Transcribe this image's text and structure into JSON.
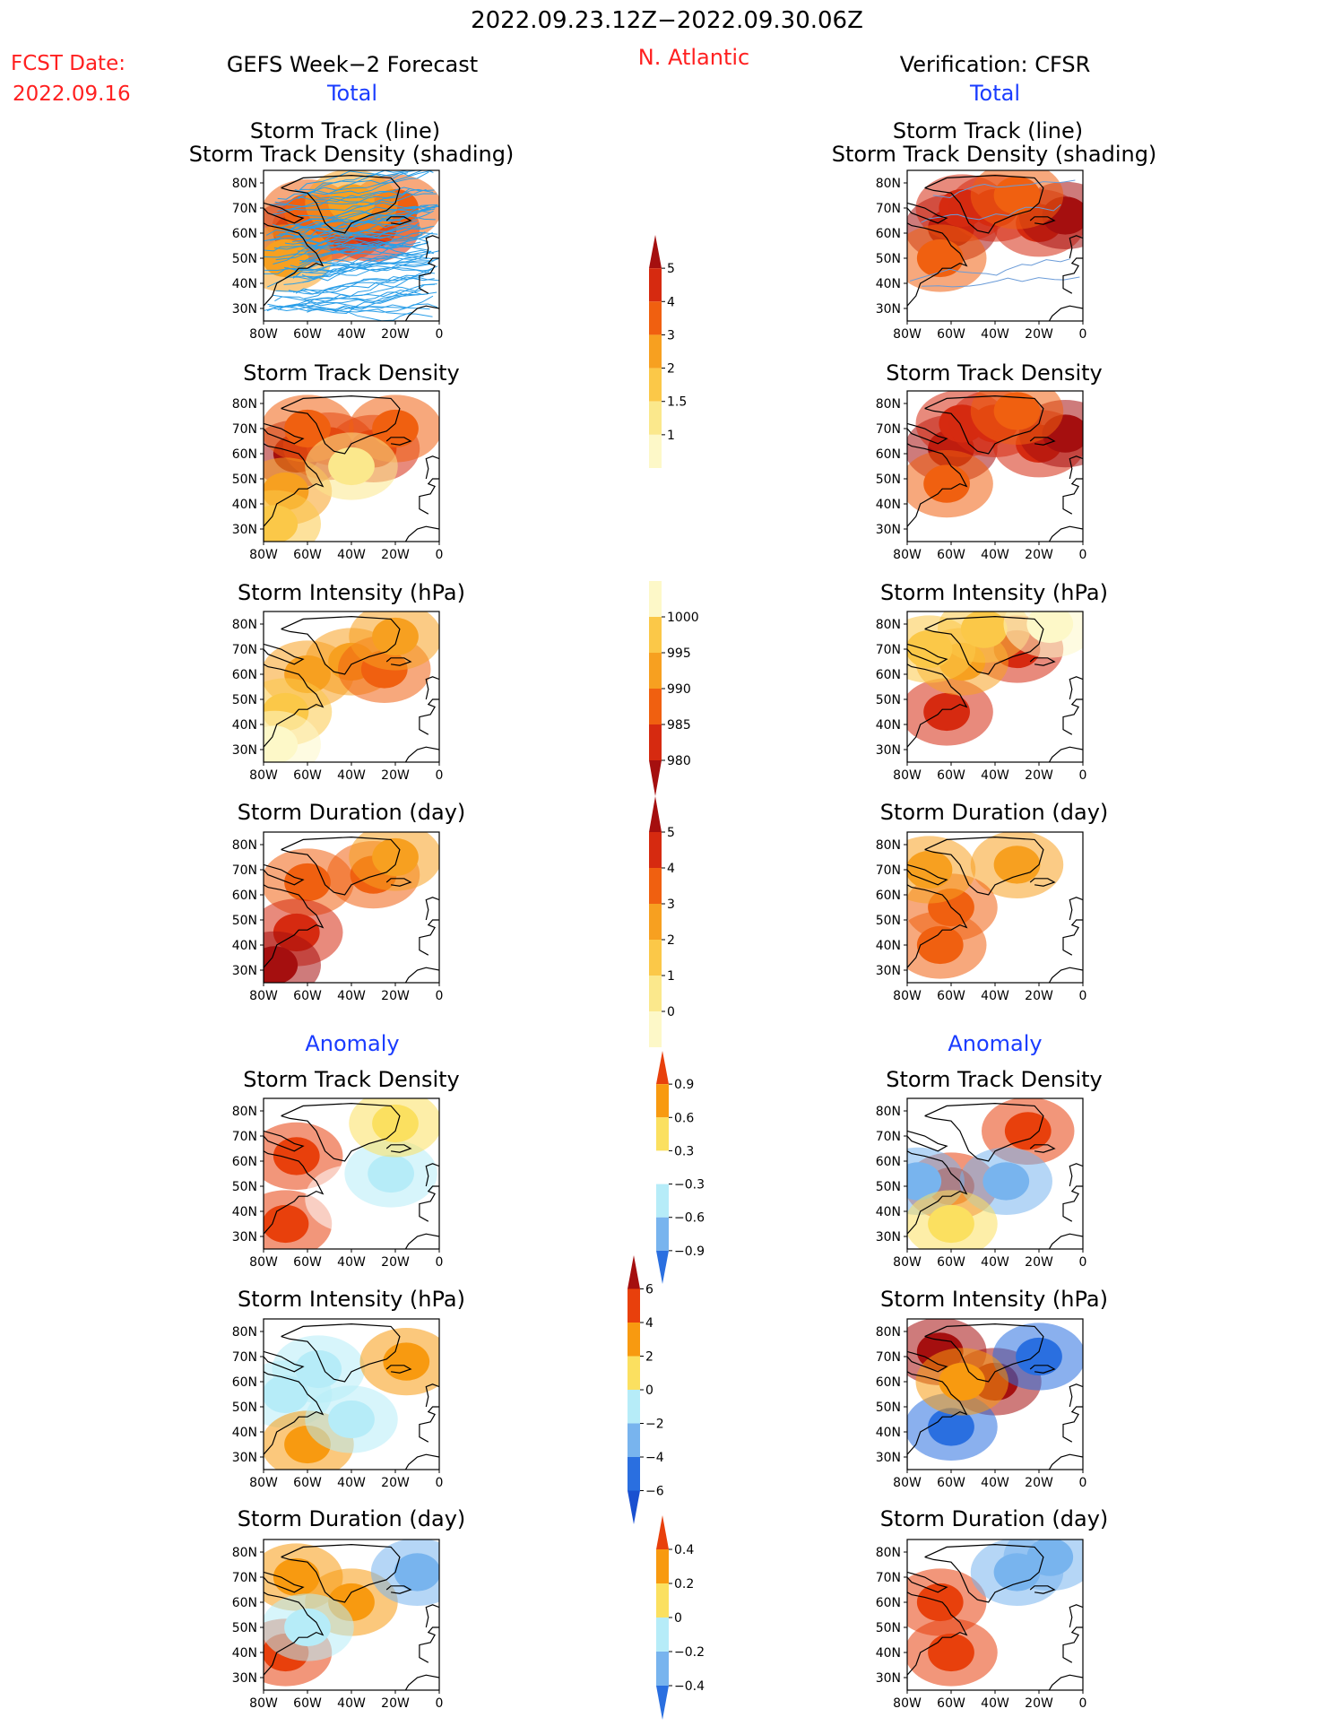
{
  "header": {
    "date_range": "2022.09.23.12Z−2022.09.30.06Z",
    "fcst_label": "FCST Date:",
    "fcst_date": "2022.09.16",
    "left_title": "GEFS Week−2 Forecast",
    "region": "N. Atlantic",
    "right_title": "Verification: CFSR",
    "total_label": "Total",
    "anomaly_label": "Anomaly"
  },
  "panel_titles": {
    "track_line": "Storm Track (line)",
    "track_shading": "Storm Track Density (shading)",
    "density": "Storm Track Density",
    "intensity": "Storm Intensity (hPa)",
    "duration": "Storm Duration (day)"
  },
  "axes": {
    "lat_ticks": [
      "80N",
      "70N",
      "60N",
      "50N",
      "40N",
      "30N"
    ],
    "lon_ticks": [
      "80W",
      "60W",
      "40W",
      "20W",
      "0"
    ]
  },
  "chart_data": [
    {
      "type": "heatmap",
      "panel": "forecast-track",
      "title": "Storm Track (line) / Storm Track Density (shading)",
      "xlim": [
        "80W",
        "0"
      ],
      "ylim": [
        "25N",
        "85N"
      ],
      "cells": [
        [
          -65,
          60,
          5
        ],
        [
          -55,
          62,
          4
        ],
        [
          -45,
          62,
          3
        ],
        [
          -30,
          62,
          4
        ],
        [
          -60,
          68,
          3
        ],
        [
          -20,
          70,
          3
        ],
        [
          -70,
          50,
          2
        ],
        [
          -40,
          72,
          2
        ]
      ]
    },
    {
      "type": "heatmap",
      "panel": "verification-track",
      "title": "Storm Track (line) / Storm Track Density (shading)",
      "xlim": [
        "80W",
        "0"
      ],
      "ylim": [
        "25N",
        "85N"
      ],
      "cells": [
        [
          -60,
          62,
          5
        ],
        [
          -55,
          70,
          4
        ],
        [
          -40,
          70,
          4
        ],
        [
          -20,
          64,
          4
        ],
        [
          -8,
          67,
          5
        ],
        [
          -65,
          50,
          3
        ],
        [
          -30,
          75,
          3
        ]
      ]
    },
    {
      "type": "heatmap",
      "panel": "forecast-density",
      "title": "Storm Track Density",
      "xlim": [
        "80W",
        "0"
      ],
      "ylim": [
        "25N",
        "85N"
      ],
      "cells": [
        [
          -65,
          60,
          5
        ],
        [
          -50,
          63,
          4
        ],
        [
          -30,
          62,
          4
        ],
        [
          -60,
          70,
          3
        ],
        [
          -20,
          70,
          3
        ],
        [
          -70,
          45,
          2
        ],
        [
          -75,
          32,
          1.5
        ],
        [
          -40,
          55,
          1
        ]
      ]
    },
    {
      "type": "heatmap",
      "panel": "verification-density",
      "title": "Storm Track Density",
      "xlim": [
        "80W",
        "0"
      ],
      "ylim": [
        "25N",
        "85N"
      ],
      "cells": [
        [
          -60,
          62,
          5
        ],
        [
          -55,
          72,
          4
        ],
        [
          -40,
          72,
          4
        ],
        [
          -20,
          64,
          4
        ],
        [
          -8,
          68,
          5
        ],
        [
          -62,
          48,
          3
        ],
        [
          -30,
          77,
          3
        ]
      ]
    },
    {
      "type": "heatmap",
      "panel": "forecast-intensity",
      "title": "Storm Intensity (hPa)",
      "xlim": [
        "80W",
        "0"
      ],
      "ylim": [
        "25N",
        "85N"
      ],
      "cells": [
        [
          -60,
          60,
          990
        ],
        [
          -40,
          65,
          990
        ],
        [
          -25,
          62,
          985
        ],
        [
          -70,
          45,
          995
        ],
        [
          -75,
          32,
          1000
        ],
        [
          -20,
          75,
          990
        ]
      ]
    },
    {
      "type": "heatmap",
      "panel": "verification-intensity",
      "title": "Storm Intensity (hPa)",
      "xlim": [
        "80W",
        "0"
      ],
      "ylim": [
        "25N",
        "85N"
      ],
      "cells": [
        [
          -30,
          70,
          980
        ],
        [
          -62,
          45,
          980
        ],
        [
          -55,
          65,
          990
        ],
        [
          -45,
          78,
          995
        ],
        [
          -15,
          80,
          1000
        ],
        [
          -70,
          70,
          995
        ]
      ]
    },
    {
      "type": "heatmap",
      "panel": "forecast-duration",
      "title": "Storm Duration (day)",
      "xlim": [
        "80W",
        "0"
      ],
      "ylim": [
        "25N",
        "85N"
      ],
      "cells": [
        [
          -60,
          65,
          3
        ],
        [
          -30,
          68,
          3
        ],
        [
          -65,
          45,
          4
        ],
        [
          -75,
          32,
          5
        ],
        [
          -20,
          75,
          2
        ]
      ]
    },
    {
      "type": "heatmap",
      "panel": "verification-duration",
      "title": "Storm Duration (day)",
      "xlim": [
        "80W",
        "0"
      ],
      "ylim": [
        "25N",
        "85N"
      ],
      "cells": [
        [
          -30,
          72,
          2
        ],
        [
          -60,
          55,
          3
        ],
        [
          -65,
          40,
          3
        ],
        [
          -70,
          70,
          2
        ]
      ]
    },
    {
      "type": "heatmap",
      "panel": "forecast-density-anomaly",
      "title": "Storm Track Density",
      "xlim": [
        "80W",
        "0"
      ],
      "ylim": [
        "25N",
        "85N"
      ],
      "cells": [
        [
          -65,
          62,
          0.9
        ],
        [
          -70,
          35,
          0.9
        ],
        [
          -40,
          45,
          -0.3
        ],
        [
          -22,
          55,
          -0.6
        ],
        [
          -20,
          75,
          0.3
        ]
      ]
    },
    {
      "type": "heatmap",
      "panel": "verification-density-anomaly",
      "title": "Storm Track Density",
      "xlim": [
        "80W",
        "0"
      ],
      "ylim": [
        "25N",
        "85N"
      ],
      "cells": [
        [
          -25,
          72,
          0.9
        ],
        [
          -60,
          50,
          0.9
        ],
        [
          -35,
          52,
          -0.9
        ],
        [
          -75,
          52,
          -0.9
        ],
        [
          -60,
          35,
          0.3
        ]
      ]
    },
    {
      "type": "heatmap",
      "panel": "forecast-intensity-anomaly",
      "title": "Storm Intensity (hPa)",
      "xlim": [
        "80W",
        "0"
      ],
      "ylim": [
        "25N",
        "85N"
      ],
      "cells": [
        [
          -55,
          65,
          -2
        ],
        [
          -70,
          55,
          -2
        ],
        [
          -15,
          68,
          2
        ],
        [
          -60,
          35,
          2
        ],
        [
          -40,
          45,
          -2
        ]
      ]
    },
    {
      "type": "heatmap",
      "panel": "verification-intensity-anomaly",
      "title": "Storm Intensity (hPa)",
      "xlim": [
        "80W",
        "0"
      ],
      "ylim": [
        "25N",
        "85N"
      ],
      "cells": [
        [
          -65,
          72,
          6
        ],
        [
          -40,
          60,
          6
        ],
        [
          -20,
          70,
          -6
        ],
        [
          -60,
          42,
          -6
        ],
        [
          -55,
          60,
          2
        ]
      ]
    },
    {
      "type": "heatmap",
      "panel": "forecast-duration-anomaly",
      "title": "Storm Duration (day)",
      "xlim": [
        "80W",
        "0"
      ],
      "ylim": [
        "25N",
        "85N"
      ],
      "cells": [
        [
          -65,
          70,
          0.2
        ],
        [
          -40,
          60,
          0.2
        ],
        [
          -10,
          72,
          -0.4
        ],
        [
          -70,
          40,
          0.4
        ],
        [
          -60,
          50,
          -0.2
        ]
      ]
    },
    {
      "type": "heatmap",
      "panel": "verification-duration-anomaly",
      "title": "Storm Duration (day)",
      "xlim": [
        "80W",
        "0"
      ],
      "ylim": [
        "25N",
        "85N"
      ],
      "cells": [
        [
          -65,
          60,
          0.4
        ],
        [
          -30,
          72,
          -0.4
        ],
        [
          -60,
          40,
          0.4
        ],
        [
          -15,
          78,
          -0.4
        ]
      ]
    }
  ],
  "colorbars": {
    "density_total": {
      "labels": [
        "5",
        "4",
        "3",
        "2",
        "1.5",
        "1"
      ],
      "colors": [
        "#a50f0f",
        "#d62a10",
        "#f06010",
        "#f7a020",
        "#fbc848",
        "#fbe88c",
        "#fdf8c8"
      ]
    },
    "intensity_total": {
      "labels": [
        "1000",
        "995",
        "990",
        "985",
        "980"
      ],
      "colors": [
        "#fdf8c8",
        "#fbc848",
        "#f7a020",
        "#f06010",
        "#d62a10",
        "#a50f0f"
      ]
    },
    "duration_total": {
      "labels": [
        "5",
        "4",
        "3",
        "2",
        "1",
        "0"
      ],
      "colors": [
        "#a50f0f",
        "#d62a10",
        "#f06010",
        "#f7a020",
        "#fbc848",
        "#fbe88c",
        "#fdf8c8"
      ]
    },
    "density_anom": {
      "labels": [
        "0.9",
        "0.6",
        "0.3",
        "−0.3",
        "−0.6",
        "−0.9"
      ],
      "colors": [
        "#e8400c",
        "#f89a10",
        "#fbe060",
        "#ffffff",
        "#b6ecf8",
        "#78b4ee",
        "#2a6fe0"
      ]
    },
    "intensity_anom": {
      "labels": [
        "6",
        "4",
        "2",
        "0",
        "−2",
        "−4",
        "−6"
      ],
      "colors": [
        "#a50f0f",
        "#e8400c",
        "#f89a10",
        "#fbe060",
        "#b6ecf8",
        "#78b4ee",
        "#2a6fe0",
        "#1a50d0"
      ]
    },
    "duration_anom": {
      "labels": [
        "0.4",
        "0.2",
        "0",
        "−0.2",
        "−0.4"
      ],
      "colors": [
        "#e8400c",
        "#f89a10",
        "#fbe060",
        "#b6ecf8",
        "#78b4ee",
        "#2a6fe0"
      ]
    }
  }
}
